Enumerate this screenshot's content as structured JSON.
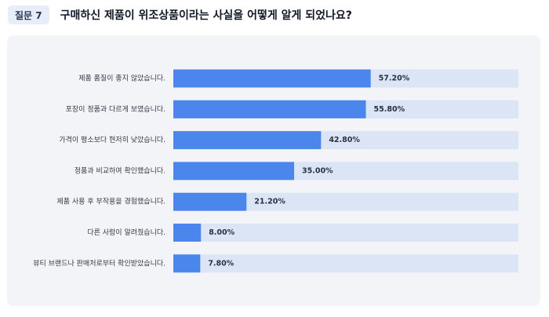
{
  "header": {
    "question_label": "질문 7",
    "question_title": "구매하신 제품이 위조상품이라는 사실을 어떻게 알게 되었나요?"
  },
  "colors": {
    "bar_fill": "#4a86ec",
    "bar_track": "#dbe5f6",
    "panel_bg": "#f3f4f7",
    "badge_bg": "#e8eef9"
  },
  "chart_data": {
    "type": "bar",
    "orientation": "horizontal",
    "categories": [
      "제품 품질이 좋지 않았습니다.",
      "포장이 정품과 다르게 보였습니다.",
      "가격이 평소보다 현저히 낮았습니다.",
      "정품과 비교하여 확인했습니다.",
      "제품 사용 후 부작용을 경험했습니다.",
      "다른 사람이 알려줬습니다.",
      "뷰티 브랜드나 판매처로부터 확인받았습니다."
    ],
    "values": [
      57.2,
      55.8,
      42.8,
      35.0,
      21.2,
      8.0,
      7.8
    ],
    "value_labels": [
      "57.20%",
      "55.80%",
      "42.80%",
      "35.00%",
      "21.20%",
      "8.00%",
      "7.80%"
    ],
    "unit": "%",
    "xlim": [
      0,
      100
    ]
  }
}
